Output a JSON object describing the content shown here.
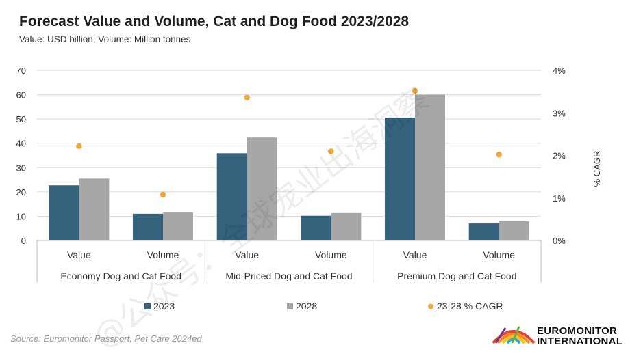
{
  "header": {
    "title": "Forecast Value and Volume, Cat and Dog Food 2023/2028",
    "subtitle": "Value: USD billion; Volume: Million tonnes"
  },
  "footer": {
    "source": "Source: Euromonitor Passport, Pet Care 2024ed",
    "logo_line1": "EUROMONITOR",
    "logo_line2": "INTERNATIONAL"
  },
  "watermark": {
    "text": "@公众号：全球宠业出海洞察"
  },
  "colors": {
    "series_2023": "#34617c",
    "series_2028": "#a6a6a6",
    "cagr": "#f4a63a",
    "grid": "#d9d9d9"
  },
  "chart_data": {
    "type": "bar",
    "categories": [
      "Value",
      "Volume",
      "Value",
      "Volume",
      "Value",
      "Volume"
    ],
    "groups": [
      "Economy Dog and Cat Food",
      "Mid-Priced Dog and Cat Food",
      "Premium Dog and Cat Food"
    ],
    "series": [
      {
        "name": "2023",
        "type": "bar",
        "axis": "left",
        "values": [
          22.7,
          11.0,
          35.9,
          10.2,
          50.6,
          7.0
        ]
      },
      {
        "name": "2028",
        "type": "bar",
        "axis": "left",
        "values": [
          25.5,
          11.6,
          42.4,
          11.3,
          60.0,
          7.9
        ]
      },
      {
        "name": "23-28 % CAGR",
        "type": "scatter",
        "axis": "right",
        "values": [
          2.22,
          1.08,
          3.36,
          2.1,
          3.52,
          2.02
        ]
      }
    ],
    "ylim": [
      0,
      70
    ],
    "yticks": [
      "0",
      "10",
      "20",
      "30",
      "40",
      "50",
      "60",
      "70"
    ],
    "y2lim": [
      0,
      4
    ],
    "y2ticks": [
      "0%",
      "1%",
      "2%",
      "3%",
      "4%"
    ],
    "y2label": "% CAGR",
    "grid": true,
    "legend": "bottom"
  }
}
